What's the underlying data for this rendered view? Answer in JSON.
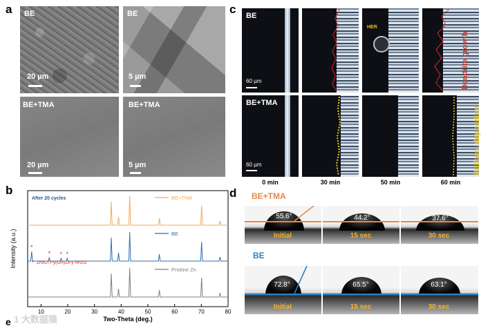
{
  "panel_a": {
    "letter": "a",
    "images": [
      {
        "label": "BE",
        "scale": "20 µm"
      },
      {
        "label": "BE",
        "scale": "5 µm"
      },
      {
        "label": "BE+TMA",
        "scale": "20 µm"
      },
      {
        "label": "BE+TMA",
        "scale": "5 µm"
      }
    ]
  },
  "panel_b": {
    "letter": "b",
    "annotation": "After 20 cycles",
    "impurity_label": "Zn",
    "impurity_formula": "ZnxOTFy(OH)2x-y·nH2O",
    "chart_data": {
      "type": "line",
      "xlabel": "Two-Theta (deg.)",
      "ylabel": "Intensity (a.u.)",
      "xlim": [
        5,
        80
      ],
      "x_ticks": [
        "10",
        "20",
        "30",
        "40",
        "50",
        "60",
        "70",
        "80"
      ],
      "series": [
        {
          "name": "BE+TMA",
          "color": "#f4a85a",
          "peaks": [
            36.3,
            39.0,
            43.2,
            54.3,
            70.1,
            77.0
          ]
        },
        {
          "name": "BE",
          "color": "#2f6fae",
          "peaks": [
            6.5,
            13.1,
            17.5,
            19.8,
            36.3,
            39.0,
            43.2,
            54.3,
            70.1,
            77.0
          ]
        },
        {
          "name": "Pristine Zn",
          "color": "#7f7f7f",
          "peaks": [
            36.3,
            39.0,
            43.2,
            54.3,
            70.1,
            77.0
          ]
        }
      ],
      "marker_positions": [
        6.5,
        13.1,
        17.5,
        19.8
      ]
    }
  },
  "panel_c": {
    "letter": "c",
    "rows": [
      {
        "label": "BE",
        "scale": "60 µm",
        "side_text": "Dendrite growth",
        "side_color": "#c0392b"
      },
      {
        "label": "BE+TMA",
        "scale": "60 µm",
        "side_text": "Uniform deposition",
        "side_color": "#e2c21a"
      }
    ],
    "times": [
      "0 min",
      "30 min",
      "50 min",
      "60 min"
    ],
    "her_label": "HER"
  },
  "panel_d": {
    "letter": "d",
    "groups": [
      {
        "title": "BE+TMA",
        "color": "#e8894a",
        "angles": [
          "55.6°",
          "44.2°",
          "37.6°"
        ]
      },
      {
        "title": "BE",
        "color": "#2f7fbf",
        "angles": [
          "72.8°",
          "65.5°",
          "63.1°"
        ]
      }
    ],
    "times": [
      "Initial",
      "15 sec",
      "30 sec"
    ]
  },
  "panel_e": {
    "letter": "e"
  },
  "watermark": {
    "text": "1 大数据猿"
  }
}
